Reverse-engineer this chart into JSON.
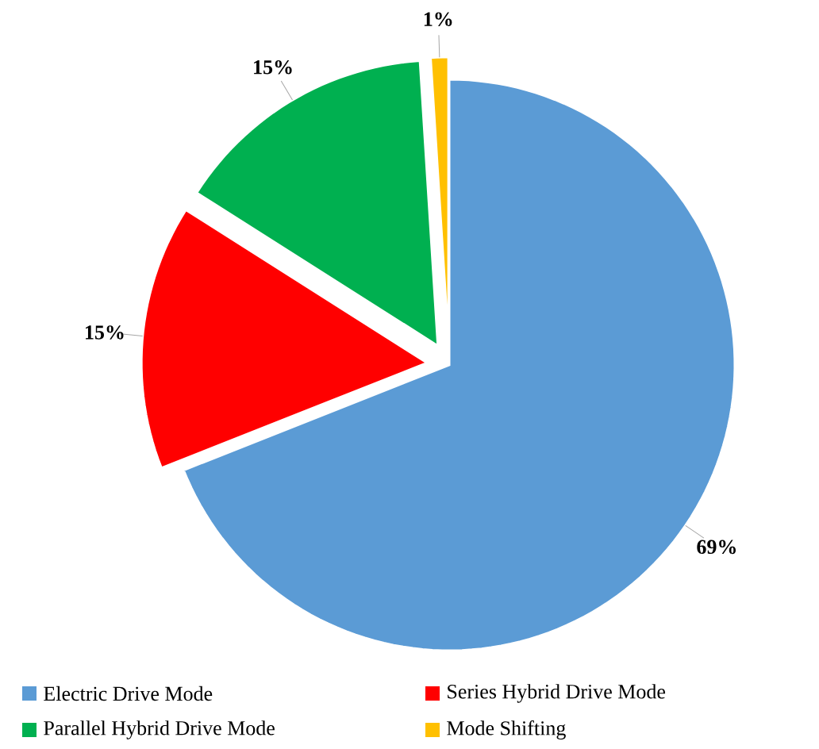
{
  "chart_data": {
    "type": "pie",
    "categories": [
      "Electric Drive Mode",
      "Series Hybrid Drive Mode",
      "Parallel Hybrid Drive Mode",
      "Mode Shifting"
    ],
    "values": [
      69,
      15,
      15,
      1
    ],
    "colors": [
      "#5b9bd5",
      "#ff0000",
      "#00b050",
      "#ffc000"
    ],
    "value_labels": [
      "69%",
      "15%",
      "15%",
      "1%"
    ],
    "legend": "bottom"
  }
}
